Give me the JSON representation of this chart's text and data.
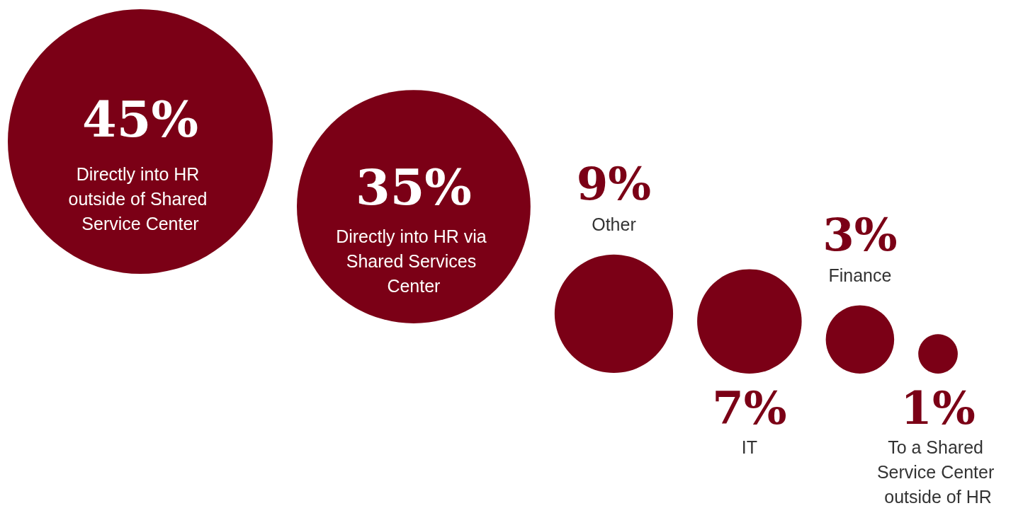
{
  "chart_data": {
    "type": "other",
    "categories": [
      "Directly into HR outside of Shared Service Center",
      "Directly into HR via Shared Services Center",
      "Other",
      "IT",
      "Finance",
      "To a Shared Service Center outside of HR"
    ],
    "values": [
      45,
      35,
      9,
      7,
      3,
      1
    ],
    "value_labels": [
      "45%",
      "35%",
      "9%",
      "7%",
      "3%",
      "1%"
    ],
    "color": "#7b0016"
  }
}
